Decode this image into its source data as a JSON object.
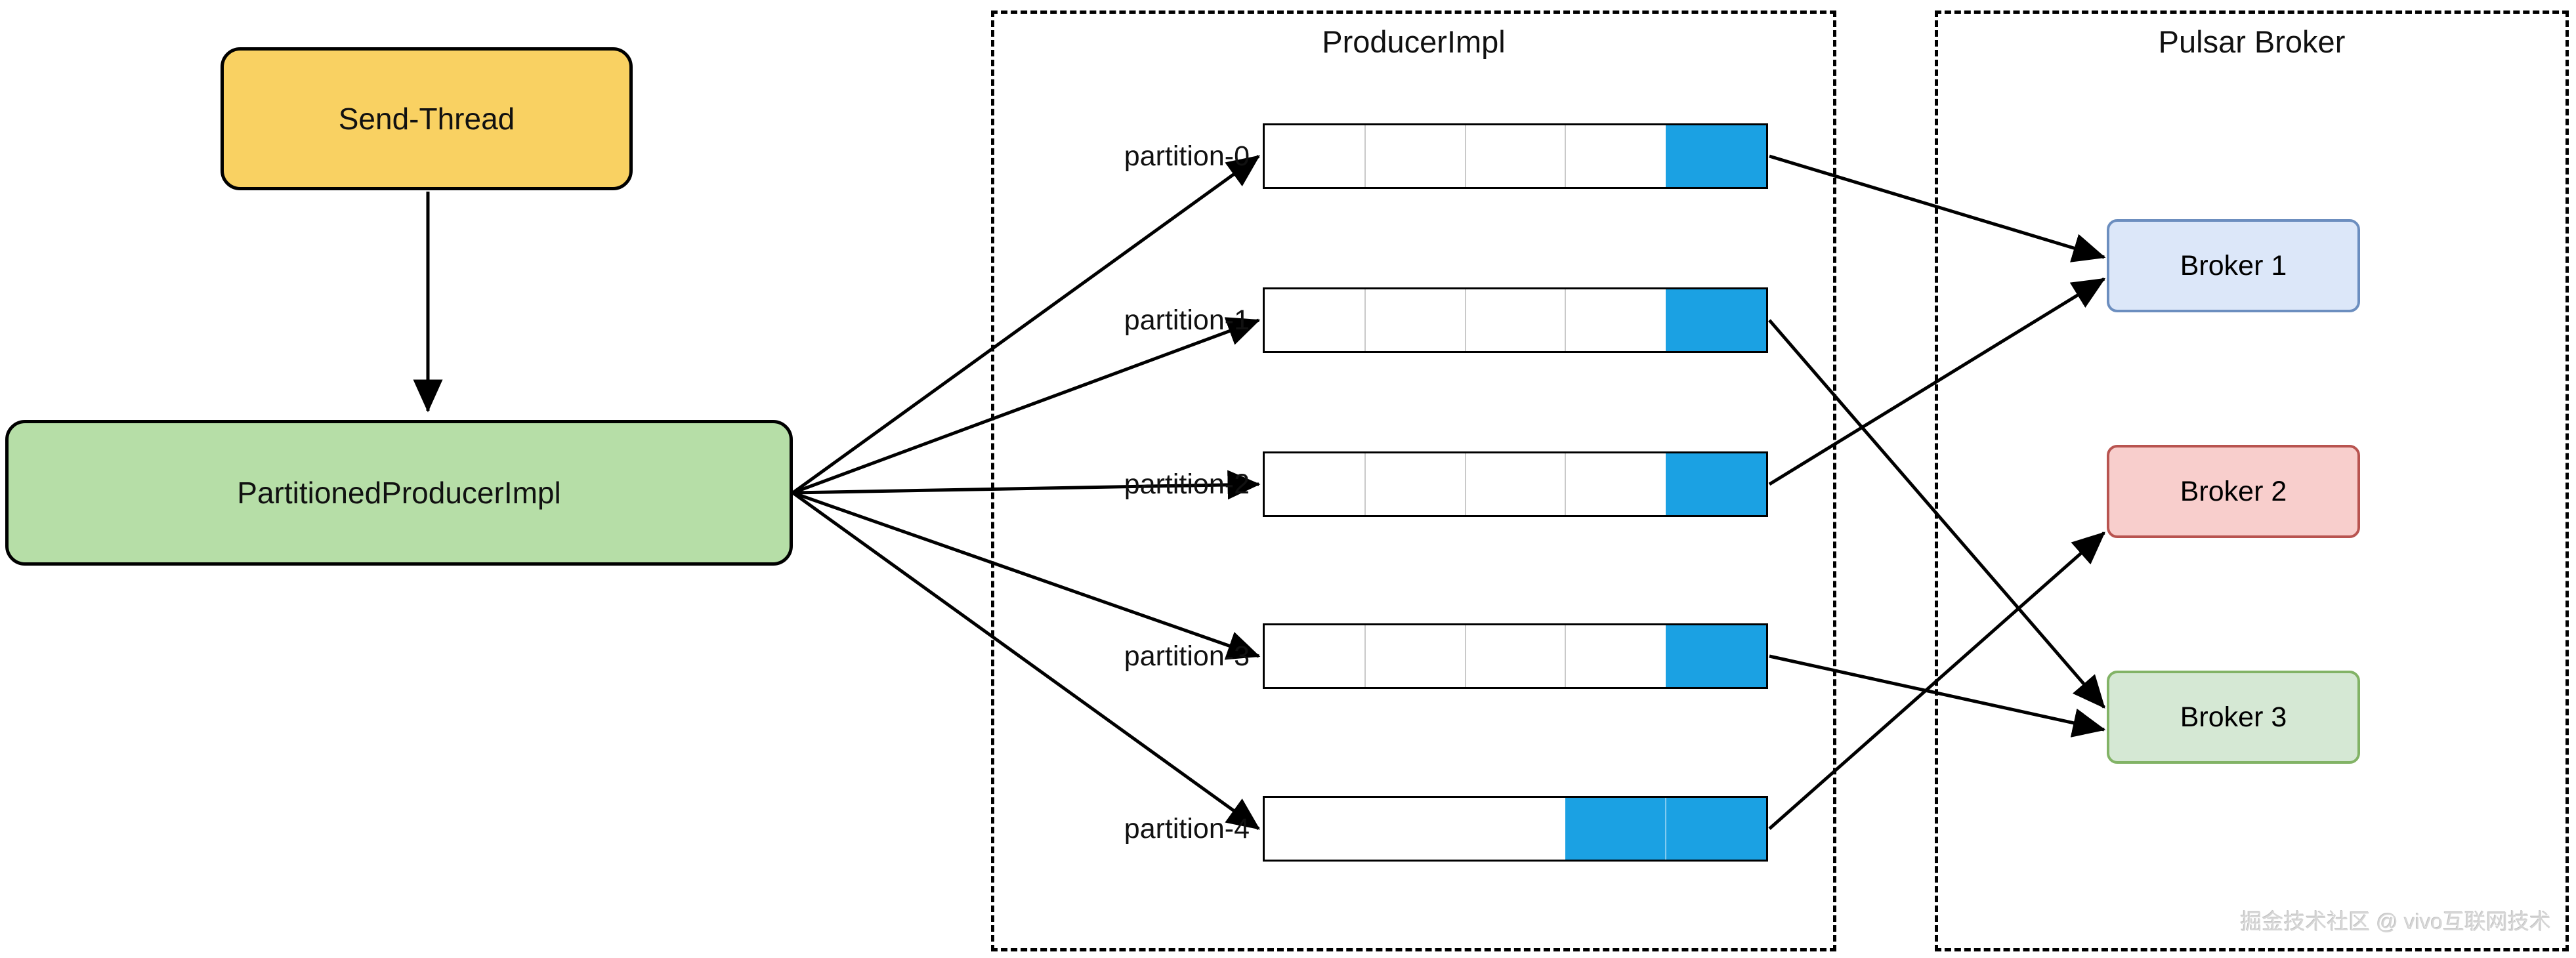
{
  "diagram": {
    "send_thread": {
      "label": "Send-Thread",
      "fill": "#F9D162",
      "border": "#000000"
    },
    "partitioned_producer": {
      "label": "PartitionedProducerImpl",
      "fill": "#B6DEA7",
      "border": "#000000"
    },
    "producer_group": {
      "title": "ProducerImpl"
    },
    "broker_group": {
      "title": "Pulsar Broker"
    },
    "queue_fill_color": "#1BA1E3",
    "partitions": [
      {
        "label": "partition-0",
        "segments": 5,
        "filled": 1,
        "white_dividers": true
      },
      {
        "label": "partition-1",
        "segments": 5,
        "filled": 1,
        "white_dividers": true
      },
      {
        "label": "partition-2",
        "segments": 5,
        "filled": 1,
        "white_dividers": true
      },
      {
        "label": "partition-3",
        "segments": 5,
        "filled": 1,
        "white_dividers": true
      },
      {
        "label": "partition-4",
        "segments": 5,
        "filled": 2,
        "white_dividers": false
      }
    ],
    "brokers": [
      {
        "label": "Broker 1",
        "fill": "#DCE7F9",
        "border": "#6C8EBF"
      },
      {
        "label": "Broker 2",
        "fill": "#F8CECC",
        "border": "#B85450"
      },
      {
        "label": "Broker 3",
        "fill": "#D5E8D4",
        "border": "#82B366"
      }
    ],
    "connections": [
      {
        "from": "send_thread",
        "to": "partitioned_producer"
      },
      {
        "from": "partitioned_producer",
        "to": "partition-0"
      },
      {
        "from": "partitioned_producer",
        "to": "partition-1"
      },
      {
        "from": "partitioned_producer",
        "to": "partition-2"
      },
      {
        "from": "partitioned_producer",
        "to": "partition-3"
      },
      {
        "from": "partitioned_producer",
        "to": "partition-4"
      },
      {
        "from": "partition-0",
        "to": "Broker 1"
      },
      {
        "from": "partition-1",
        "to": "Broker 3"
      },
      {
        "from": "partition-2",
        "to": "Broker 1"
      },
      {
        "from": "partition-3",
        "to": "Broker 3"
      },
      {
        "from": "partition-4",
        "to": "Broker 2"
      }
    ],
    "watermark": "掘金技术社区 @ vivo互联网技术"
  }
}
